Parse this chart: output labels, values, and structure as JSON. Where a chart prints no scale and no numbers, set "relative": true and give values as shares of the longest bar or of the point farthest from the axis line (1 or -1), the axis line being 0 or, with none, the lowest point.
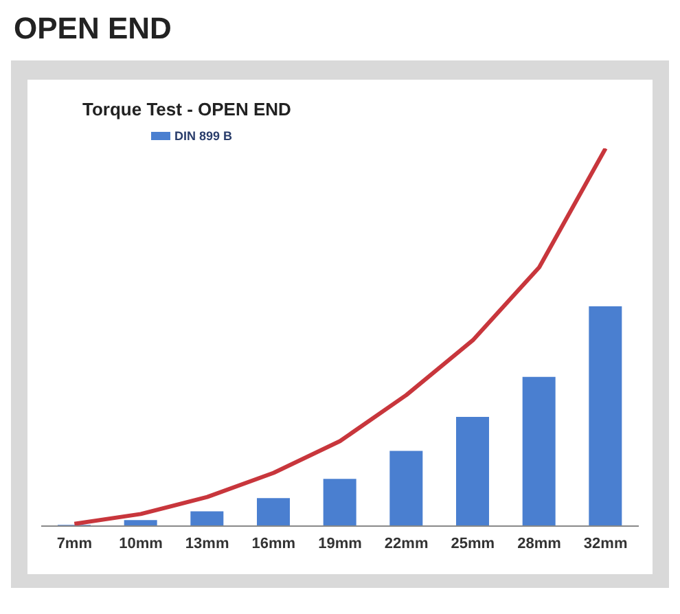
{
  "chart_data": {
    "type": "bar",
    "title": "OPEN END",
    "subtitle": "Torque Test - OPEN END",
    "relative": true,
    "legend": "top left",
    "grid": false,
    "categories": [
      "7mm",
      "10mm",
      "13mm",
      "16mm",
      "19mm",
      "22mm",
      "25mm",
      "28mm",
      "32mm"
    ],
    "series": [
      {
        "name": "DIN 899 B",
        "color": "#4a7fd0",
        "values": [
          0.003,
          0.016,
          0.039,
          0.074,
          0.125,
          0.199,
          0.289,
          0.395,
          0.582
        ]
      },
      {
        "type": "line",
        "color": "#c8363c",
        "values": [
          0.006,
          0.032,
          0.077,
          0.141,
          0.225,
          0.347,
          0.492,
          0.685,
          1
        ]
      }
    ]
  }
}
